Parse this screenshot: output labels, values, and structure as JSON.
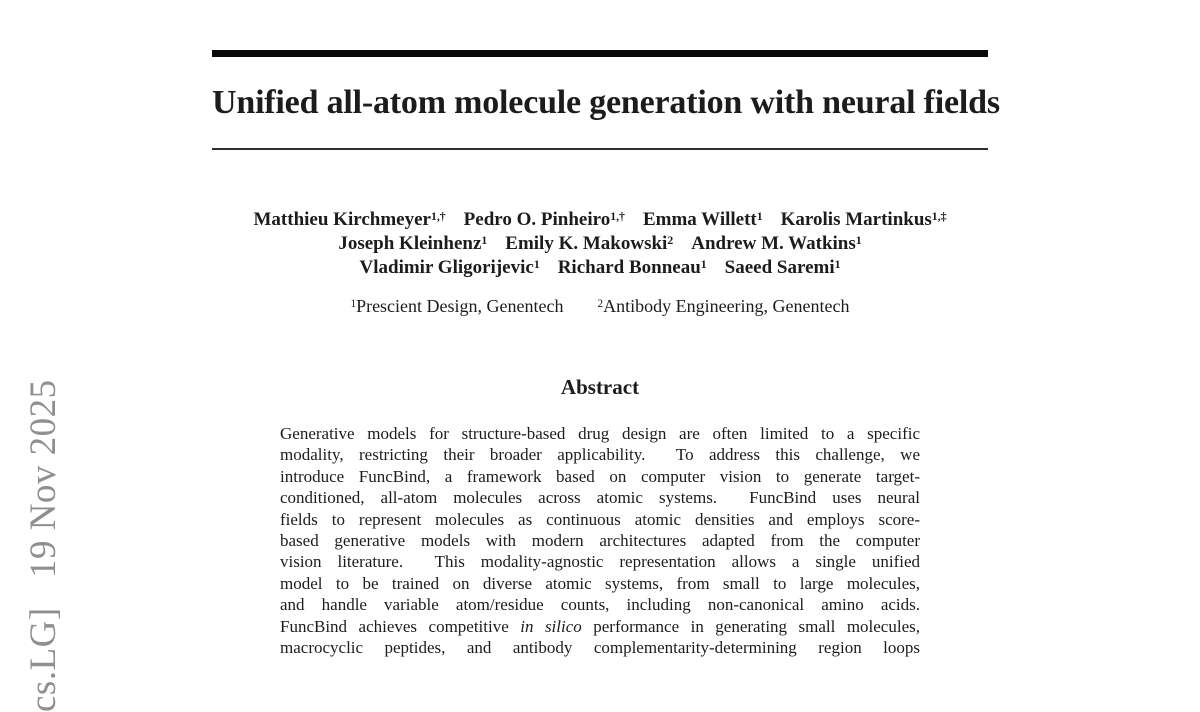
{
  "watermark": {
    "text": "cs.LG]   19 Nov 2025",
    "color": "#8f8f8f"
  },
  "title": {
    "text": "Unified all-atom molecule generation with neural fields"
  },
  "authors": {
    "rows": [
      [
        {
          "name": "Matthieu Kirchmeyer",
          "sup": "1,†"
        },
        {
          "name": "Pedro O. Pinheiro",
          "sup": "1,†"
        },
        {
          "name": "Emma Willett",
          "sup": "1"
        },
        {
          "name": "Karolis Martinkus",
          "sup": "1,‡"
        }
      ],
      [
        {
          "name": "Joseph Kleinhenz",
          "sup": "1"
        },
        {
          "name": "Emily K. Makowski",
          "sup": "2"
        },
        {
          "name": "Andrew M. Watkins",
          "sup": "1"
        }
      ],
      [
        {
          "name": "Vladimir Gligorijevic",
          "sup": "1"
        },
        {
          "name": "Richard Bonneau",
          "sup": "1"
        },
        {
          "name": "Saeed Saremi",
          "sup": "1"
        }
      ]
    ]
  },
  "affiliations": [
    {
      "sup": "1",
      "text": "Prescient Design, Genentech"
    },
    {
      "sup": "2",
      "text": "Antibody Engineering, Genentech"
    }
  ],
  "abstract": {
    "heading": "Abstract",
    "lines": [
      "Generative models for structure-based drug design are often limited to a specific",
      "modality, restricting their broader applicability.  To address this challenge, we",
      "introduce FuncBind, a framework based on computer vision to generate target-",
      "conditioned, all-atom molecules across atomic systems.  FuncBind uses neural",
      "fields to represent molecules as continuous atomic densities and employs score-",
      "based generative models with modern architectures adapted from the computer",
      "vision literature.  This modality-agnostic representation allows a single unified",
      "model to be trained on diverse atomic systems, from small to large molecules,",
      "and handle variable atom/residue counts, including non-canonical amino acids."
    ],
    "line10": {
      "pre": "FuncBind achieves competitive ",
      "italic": "in silico",
      "post": " performance in generating small molecules,"
    },
    "line11": "macrocyclic peptides, and antibody complementarity-determining region loops"
  }
}
